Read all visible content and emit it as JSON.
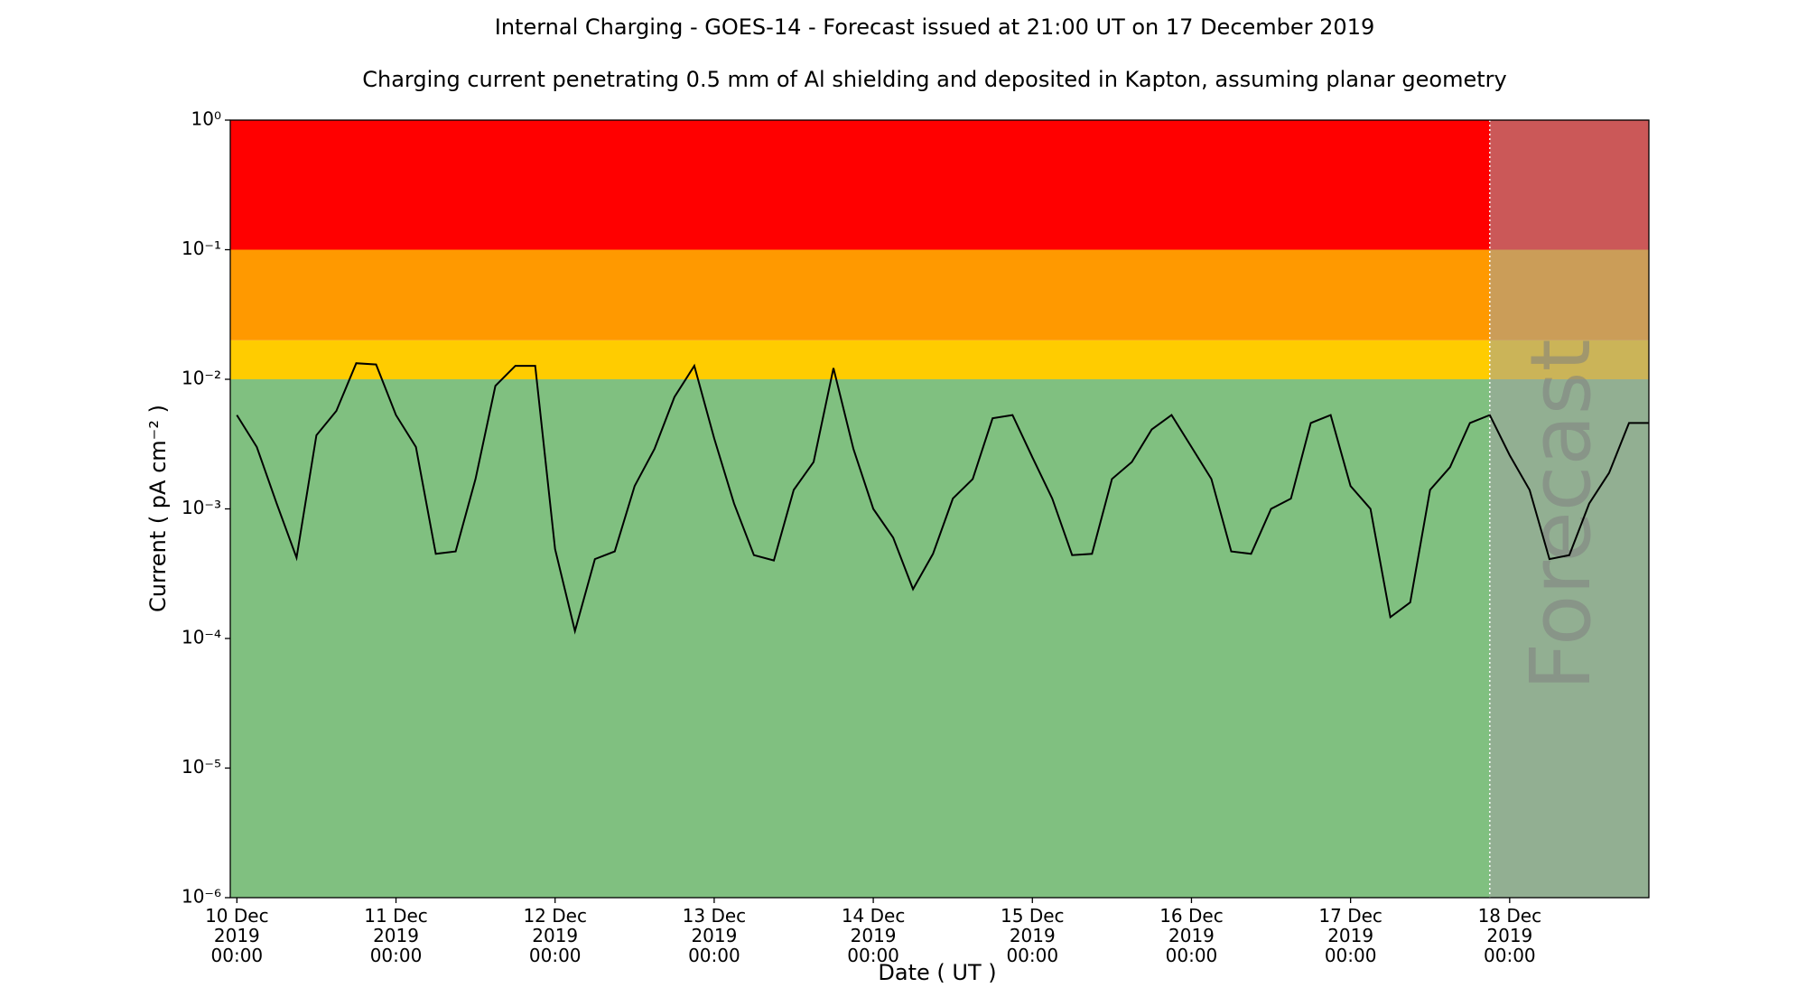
{
  "chart_data": {
    "type": "line",
    "title": "Internal Charging - GOES-14 - Forecast issued at 21:00 UT on 17 December 2019",
    "subtitle": "Charging current penetrating 0.5 mm of Al shielding and deposited in Kapton, assuming planar geometry",
    "x_label": "Date ( UT )",
    "y_label": "Current ( pA cm⁻² )",
    "y_scale": "log",
    "ylim": [
      1e-06,
      1
    ],
    "yticks": [
      {
        "value": 1,
        "label": "10⁰"
      },
      {
        "value": 0.1,
        "label": "10⁻¹"
      },
      {
        "value": 0.01,
        "label": "10⁻²"
      },
      {
        "value": 0.001,
        "label": "10⁻³"
      },
      {
        "value": 0.0001,
        "label": "10⁻⁴"
      },
      {
        "value": 1e-05,
        "label": "10⁻⁵"
      },
      {
        "value": 1e-06,
        "label": "10⁻⁶"
      }
    ],
    "xlim": [
      "2019-12-09T23:00",
      "2019-12-18T21:00"
    ],
    "xticks": [
      {
        "value": "2019-12-10T00:00",
        "label": [
          "10 Dec",
          "2019",
          "00:00"
        ]
      },
      {
        "value": "2019-12-11T00:00",
        "label": [
          "11 Dec",
          "2019",
          "00:00"
        ]
      },
      {
        "value": "2019-12-12T00:00",
        "label": [
          "12 Dec",
          "2019",
          "00:00"
        ]
      },
      {
        "value": "2019-12-13T00:00",
        "label": [
          "13 Dec",
          "2019",
          "00:00"
        ]
      },
      {
        "value": "2019-12-14T00:00",
        "label": [
          "14 Dec",
          "2019",
          "00:00"
        ]
      },
      {
        "value": "2019-12-15T00:00",
        "label": [
          "15 Dec",
          "2019",
          "00:00"
        ]
      },
      {
        "value": "2019-12-16T00:00",
        "label": [
          "16 Dec",
          "2019",
          "00:00"
        ]
      },
      {
        "value": "2019-12-17T00:00",
        "label": [
          "17 Dec",
          "2019",
          "00:00"
        ]
      },
      {
        "value": "2019-12-18T00:00",
        "label": [
          "18 Dec",
          "2019",
          "00:00"
        ]
      }
    ],
    "bands": [
      {
        "upper": 0.01,
        "color": "#80c080"
      },
      {
        "upper": 0.02,
        "color": "#ffcc00"
      },
      {
        "upper": 0.1,
        "color": "#ff9900"
      },
      {
        "upper": 1,
        "color": "#ff0000"
      }
    ],
    "forecast_start": "2019-12-17T21:00",
    "forecast_label": "Forecast",
    "forecast_color": "rgba(161,161,161,0.55)",
    "color": "#000000",
    "x": [
      "2019-12-10T00:00",
      "2019-12-10T03:00",
      "2019-12-10T06:00",
      "2019-12-10T09:00",
      "2019-12-10T12:00",
      "2019-12-10T15:00",
      "2019-12-10T18:00",
      "2019-12-10T21:00",
      "2019-12-11T00:00",
      "2019-12-11T03:00",
      "2019-12-11T06:00",
      "2019-12-11T09:00",
      "2019-12-11T12:00",
      "2019-12-11T15:00",
      "2019-12-11T18:00",
      "2019-12-11T21:00",
      "2019-12-12T00:00",
      "2019-12-12T03:00",
      "2019-12-12T06:00",
      "2019-12-12T09:00",
      "2019-12-12T12:00",
      "2019-12-12T15:00",
      "2019-12-12T18:00",
      "2019-12-12T21:00",
      "2019-12-13T00:00",
      "2019-12-13T03:00",
      "2019-12-13T06:00",
      "2019-12-13T09:00",
      "2019-12-13T12:00",
      "2019-12-13T15:00",
      "2019-12-13T18:00",
      "2019-12-13T21:00",
      "2019-12-14T00:00",
      "2019-12-14T03:00",
      "2019-12-14T06:00",
      "2019-12-14T09:00",
      "2019-12-14T12:00",
      "2019-12-14T15:00",
      "2019-12-14T18:00",
      "2019-12-14T21:00",
      "2019-12-15T00:00",
      "2019-12-15T03:00",
      "2019-12-15T06:00",
      "2019-12-15T09:00",
      "2019-12-15T12:00",
      "2019-12-15T15:00",
      "2019-12-15T18:00",
      "2019-12-15T21:00",
      "2019-12-16T00:00",
      "2019-12-16T03:00",
      "2019-12-16T06:00",
      "2019-12-16T09:00",
      "2019-12-16T12:00",
      "2019-12-16T15:00",
      "2019-12-16T18:00",
      "2019-12-16T21:00",
      "2019-12-17T00:00",
      "2019-12-17T03:00",
      "2019-12-17T06:00",
      "2019-12-17T09:00",
      "2019-12-17T12:00",
      "2019-12-17T15:00",
      "2019-12-17T18:00",
      "2019-12-17T21:00",
      "2019-12-18T00:00",
      "2019-12-18T03:00",
      "2019-12-18T06:00",
      "2019-12-18T09:00",
      "2019-12-18T12:00",
      "2019-12-18T15:00",
      "2019-12-18T18:00",
      "2019-12-18T21:00"
    ],
    "values": [
      0.0053,
      0.003,
      0.0011,
      0.00042,
      0.0037,
      0.0057,
      0.0133,
      0.013,
      0.0053,
      0.003,
      0.00045,
      0.00047,
      0.0017,
      0.0089,
      0.0127,
      0.0127,
      0.00049,
      0.000114,
      0.00041,
      0.00047,
      0.0015,
      0.0029,
      0.0073,
      0.0127,
      0.0035,
      0.0011,
      0.00044,
      0.0004,
      0.0014,
      0.0023,
      0.0122,
      0.0029,
      0.001,
      0.0006,
      0.00024,
      0.00045,
      0.0012,
      0.0017,
      0.005,
      0.0053,
      0.0025,
      0.0012,
      0.00044,
      0.00045,
      0.0017,
      0.0023,
      0.0041,
      0.0053,
      0.003,
      0.0017,
      0.00047,
      0.00045,
      0.001,
      0.0012,
      0.0046,
      0.0053,
      0.0015,
      0.001,
      0.000146,
      0.00019,
      0.0014,
      0.0021,
      0.0046,
      0.0053,
      0.0026,
      0.0014,
      0.00041,
      0.00044,
      0.0011,
      0.0019,
      0.0046,
      0.0046
    ]
  }
}
